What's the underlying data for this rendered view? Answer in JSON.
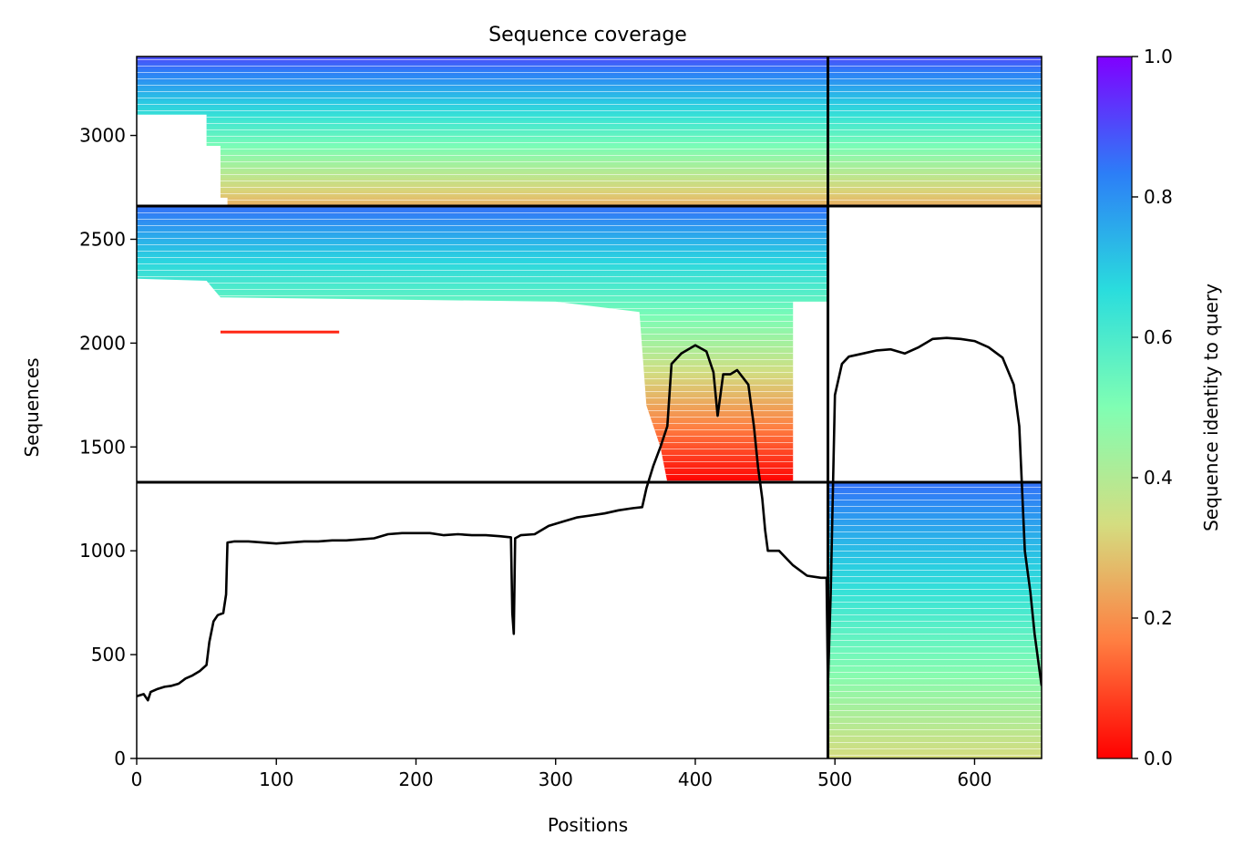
{
  "chart_data": {
    "type": "heatmap",
    "title": "Sequence coverage",
    "xlabel": "Positions",
    "ylabel": "Sequences",
    "xlim": [
      0,
      648
    ],
    "ylim": [
      0,
      3380
    ],
    "xticks": [
      0,
      100,
      200,
      300,
      400,
      500,
      600
    ],
    "yticks": [
      0,
      500,
      1000,
      1500,
      2000,
      2500,
      3000
    ],
    "grid": false,
    "colormap": "rainbow_r",
    "colorbar": {
      "label": "Sequence identity to query",
      "range": [
        0,
        1
      ],
      "ticks": [
        "0.0",
        "0.2",
        "0.4",
        "0.6",
        "0.8",
        "1.0"
      ],
      "colors": [
        "#ff0000",
        "#ff7e41",
        "#d4dd80",
        "#80feb3",
        "#2adddd",
        "#2c7ef7",
        "#8000ff"
      ]
    },
    "chain_boundary_position": 495,
    "row_boundaries": [
      1330,
      2660
    ],
    "blocks": [
      {
        "name": "top",
        "x_range": [
          0,
          648
        ],
        "seq_range": [
          2660,
          3380
        ],
        "identity_top": 0.9,
        "identity_bottom": 0.25,
        "coverage_start_by_seq": [
          [
            3380,
            0
          ],
          [
            3100,
            50
          ],
          [
            2950,
            60
          ],
          [
            2700,
            65
          ]
        ]
      },
      {
        "name": "middle-left",
        "x_range": [
          0,
          495
        ],
        "seq_range": [
          1330,
          2660
        ],
        "identity_top": 0.85,
        "identity_bottom": 0.0
      },
      {
        "name": "bottom-right",
        "x_range": [
          495,
          648
        ],
        "seq_range": [
          0,
          1330
        ],
        "identity_top": 0.85,
        "identity_bottom": 0.33
      }
    ],
    "series": [
      {
        "type": "line",
        "color": "#000000",
        "points": [
          [
            0,
            300
          ],
          [
            5,
            310
          ],
          [
            8,
            280
          ],
          [
            10,
            320
          ],
          [
            15,
            335
          ],
          [
            20,
            345
          ],
          [
            25,
            350
          ],
          [
            30,
            360
          ],
          [
            35,
            385
          ],
          [
            40,
            400
          ],
          [
            45,
            420
          ],
          [
            50,
            450
          ],
          [
            52,
            560
          ],
          [
            55,
            660
          ],
          [
            58,
            690
          ],
          [
            62,
            700
          ],
          [
            64,
            790
          ],
          [
            65,
            1040
          ],
          [
            70,
            1045
          ],
          [
            80,
            1045
          ],
          [
            90,
            1040
          ],
          [
            100,
            1035
          ],
          [
            110,
            1040
          ],
          [
            120,
            1045
          ],
          [
            130,
            1045
          ],
          [
            140,
            1050
          ],
          [
            150,
            1050
          ],
          [
            160,
            1055
          ],
          [
            170,
            1060
          ],
          [
            180,
            1080
          ],
          [
            190,
            1085
          ],
          [
            200,
            1085
          ],
          [
            210,
            1085
          ],
          [
            220,
            1075
          ],
          [
            230,
            1080
          ],
          [
            240,
            1075
          ],
          [
            250,
            1075
          ],
          [
            260,
            1070
          ],
          [
            268,
            1065
          ],
          [
            269,
            700
          ],
          [
            270,
            600
          ],
          [
            271,
            1060
          ],
          [
            275,
            1075
          ],
          [
            285,
            1080
          ],
          [
            295,
            1120
          ],
          [
            305,
            1140
          ],
          [
            315,
            1160
          ],
          [
            325,
            1170
          ],
          [
            335,
            1180
          ],
          [
            345,
            1195
          ],
          [
            355,
            1205
          ],
          [
            362,
            1210
          ],
          [
            365,
            1300
          ],
          [
            370,
            1410
          ],
          [
            375,
            1500
          ],
          [
            380,
            1600
          ],
          [
            383,
            1900
          ],
          [
            390,
            1950
          ],
          [
            400,
            1990
          ],
          [
            408,
            1960
          ],
          [
            413,
            1860
          ],
          [
            416,
            1650
          ],
          [
            420,
            1850
          ],
          [
            425,
            1850
          ],
          [
            430,
            1870
          ],
          [
            438,
            1800
          ],
          [
            442,
            1600
          ],
          [
            445,
            1400
          ],
          [
            448,
            1250
          ],
          [
            450,
            1100
          ],
          [
            452,
            1000
          ],
          [
            460,
            1000
          ],
          [
            470,
            930
          ],
          [
            480,
            880
          ],
          [
            490,
            870
          ],
          [
            494,
            870
          ],
          [
            495,
            350
          ],
          [
            497,
            800
          ],
          [
            500,
            1750
          ],
          [
            505,
            1900
          ],
          [
            510,
            1935
          ],
          [
            520,
            1950
          ],
          [
            530,
            1965
          ],
          [
            540,
            1970
          ],
          [
            550,
            1950
          ],
          [
            560,
            1980
          ],
          [
            570,
            2020
          ],
          [
            580,
            2025
          ],
          [
            590,
            2020
          ],
          [
            600,
            2010
          ],
          [
            610,
            1980
          ],
          [
            620,
            1930
          ],
          [
            628,
            1800
          ],
          [
            632,
            1600
          ],
          [
            636,
            1000
          ],
          [
            640,
            800
          ],
          [
            643,
            600
          ],
          [
            648,
            350
          ]
        ]
      }
    ]
  }
}
